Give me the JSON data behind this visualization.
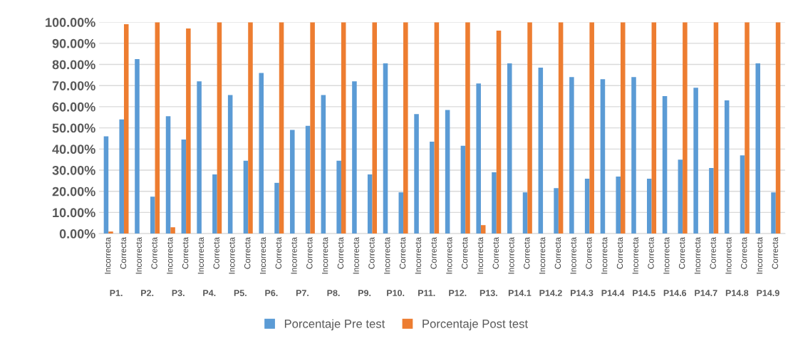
{
  "chart_data": {
    "type": "bar",
    "categories": [
      "Incorrecta",
      "Correcta",
      "Incorrecta",
      "Correcta",
      "Incorrecta",
      "Correcta",
      "Incorrecta",
      "Correcta",
      "Incorrecta",
      "Correcta",
      "Incorrecta",
      "Correcta",
      "Incorrecta",
      "Correcta",
      "Incorrecta",
      "Correcta",
      "Incorrecta",
      "Correcta",
      "Incorrecta",
      "Correcta",
      "Incorrecta",
      "Correcta",
      "Incorrecta",
      "Correcta",
      "Incorrecta",
      "Correcta",
      "Incorrecta",
      "Correcta",
      "Incorrecta",
      "Correcta",
      "Incorrecta",
      "Correcta",
      "Incorrecta",
      "Correcta",
      "Incorrecta",
      "Correcta",
      "Incorrecta",
      "Correcta",
      "Incorrecta",
      "Correcta",
      "Incorrecta",
      "Correcta",
      "Incorrecta",
      "Correcta"
    ],
    "annotations": [
      "P1.",
      "P2.",
      "P3.",
      "P4.",
      "P5.",
      "P6.",
      "P7.",
      "P8.",
      "P9.",
      "P10.",
      "P11.",
      "P12.",
      "P13.",
      "P14.1",
      "P14.2",
      "P14.3",
      "P14.4",
      "P14.5",
      "P14.6",
      "P14.7",
      "P14.8",
      "P14.9"
    ],
    "series": [
      {
        "name": "Porcentaje Pre test",
        "color": "#5b9bd5",
        "values": [
          46,
          54,
          82.5,
          17.5,
          55.5,
          44.5,
          72,
          28,
          65.5,
          34.5,
          76,
          24,
          49,
          51,
          65.5,
          34.5,
          72,
          28,
          80.5,
          19.5,
          56.5,
          43.5,
          58.5,
          41.5,
          71,
          29,
          80.5,
          19.5,
          78.5,
          21.5,
          74,
          26,
          73,
          27,
          74,
          26,
          65,
          35,
          69,
          31,
          63,
          37,
          80.5,
          19.5
        ]
      },
      {
        "name": "Porcentaje Post test",
        "color": "#ed7d31",
        "values": [
          1,
          99,
          0,
          100,
          3,
          97,
          0,
          100,
          0,
          100,
          0,
          100,
          0,
          100,
          0,
          100,
          0,
          100,
          0,
          100,
          0,
          100,
          0,
          100,
          4,
          96,
          0,
          100,
          0,
          100,
          0,
          100,
          0,
          100,
          0,
          100,
          0,
          100,
          0,
          100,
          0,
          100,
          0,
          100
        ]
      }
    ],
    "ylim": [
      0,
      100
    ],
    "yticks": [
      {
        "value": 0,
        "label": "0.00%"
      },
      {
        "value": 10,
        "label": "10.00%"
      },
      {
        "value": 20,
        "label": "20.00%"
      },
      {
        "value": 30,
        "label": "30.00%"
      },
      {
        "value": 40,
        "label": "40.00%"
      },
      {
        "value": 50,
        "label": "50.00%"
      },
      {
        "value": 60,
        "label": "60.00%"
      },
      {
        "value": 70,
        "label": "70.00%"
      },
      {
        "value": 80,
        "label": "80.00%"
      },
      {
        "value": 90,
        "label": "90.00%"
      },
      {
        "value": 100,
        "label": "100.00%"
      }
    ],
    "grid": "y",
    "legend": "bottom"
  }
}
